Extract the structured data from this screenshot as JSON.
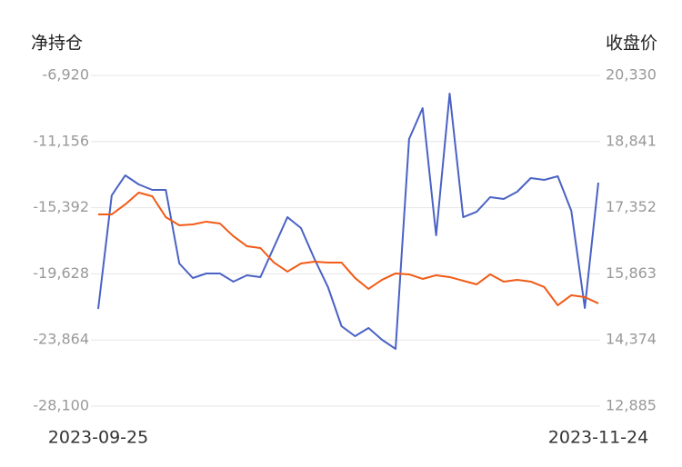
{
  "chart_data": {
    "type": "line",
    "y_label": "净持仓",
    "y2_label": "收盘价",
    "categories": [
      "2023-09-25",
      null,
      null,
      null,
      null,
      null,
      null,
      null,
      null,
      null,
      null,
      null,
      null,
      null,
      null,
      null,
      null,
      null,
      null,
      null,
      null,
      null,
      null,
      null,
      null,
      null,
      null,
      null,
      null,
      null,
      null,
      null,
      null,
      null,
      null,
      null,
      null,
      "2023-11-24"
    ],
    "series": [
      {
        "color": "#4a62c4",
        "axis": "y",
        "values": [
          -21875,
          -14601,
          -13321,
          -13903,
          -14252,
          -14252,
          -18965,
          -19896,
          -19605,
          -19605,
          -20129,
          -19722,
          -19838,
          -17918,
          -15998,
          -16696,
          -18674,
          -20478,
          -22980,
          -23620,
          -23097,
          -23853,
          -24435,
          -10993,
          -9015,
          -17161,
          -8084,
          -15998,
          -15649,
          -14717,
          -14834,
          -14368,
          -13495,
          -13612,
          -13379,
          -15590,
          -21817,
          -13786
        ]
      },
      {
        "color": "#f25a15",
        "axis": "y2",
        "values": [
          17201,
          17201,
          17426,
          17692,
          17610,
          17140,
          16956,
          16976,
          17038,
          16997,
          16710,
          16485,
          16444,
          16117,
          15913,
          16097,
          16138,
          16117,
          16117,
          15770,
          15524,
          15729,
          15872,
          15851,
          15749,
          15831,
          15790,
          15708,
          15626,
          15851,
          15688,
          15729,
          15688,
          15565,
          15156,
          15381,
          15340,
          15197
        ]
      }
    ],
    "ylim": [
      -28100,
      -6920
    ],
    "yticks": [
      {
        "value": -28100,
        "label": "-28,100"
      },
      {
        "value": -23864,
        "label": "-23,864"
      },
      {
        "value": -19628,
        "label": "-19,628"
      },
      {
        "value": -15392,
        "label": "-15,392"
      },
      {
        "value": -11156,
        "label": "-11,156"
      },
      {
        "value": -6920,
        "label": "-6,920"
      }
    ],
    "y2lim": [
      12885,
      20330
    ],
    "y2ticks": [
      {
        "value": 12885,
        "label": "12,885"
      },
      {
        "value": 14374,
        "label": "14,374"
      },
      {
        "value": 15863,
        "label": "15,863"
      },
      {
        "value": 17352,
        "label": "17,352"
      },
      {
        "value": 18841,
        "label": "18,841"
      },
      {
        "value": 20330,
        "label": "20,330"
      }
    ],
    "grid": true
  }
}
